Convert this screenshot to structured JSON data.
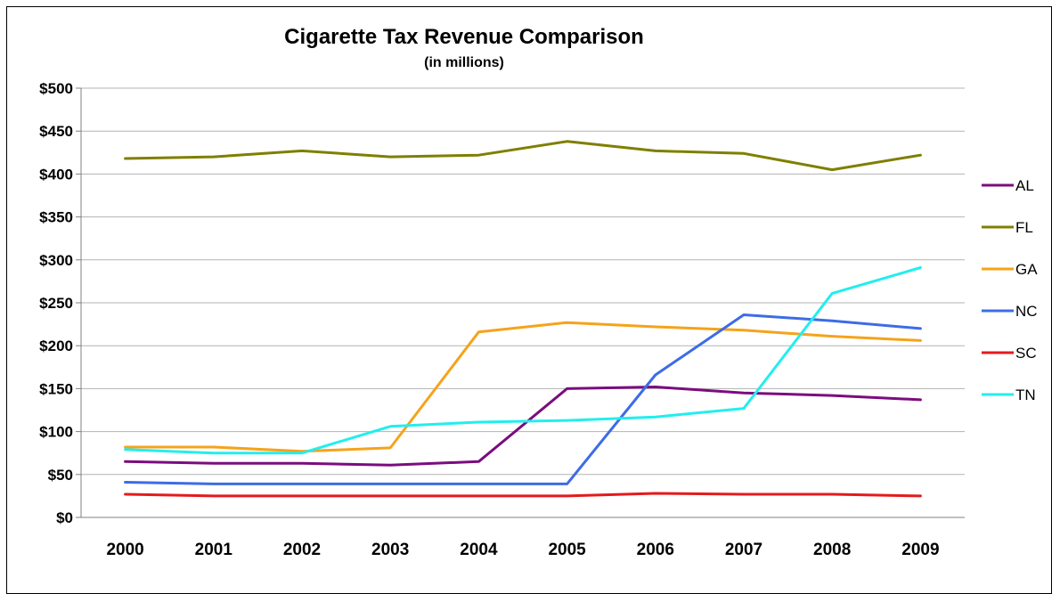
{
  "chart_data": {
    "type": "line",
    "title": "Cigarette Tax Revenue Comparison",
    "subtitle": "(in millions)",
    "xlabel": "",
    "ylabel": "",
    "x": [
      "2000",
      "2001",
      "2002",
      "2003",
      "2004",
      "2005",
      "2006",
      "2007",
      "2008",
      "2009"
    ],
    "ylim": [
      0,
      500
    ],
    "yticks": [
      {
        "value": 0,
        "label": "$0"
      },
      {
        "value": 50,
        "label": "$50"
      },
      {
        "value": 100,
        "label": "$100"
      },
      {
        "value": 150,
        "label": "$150"
      },
      {
        "value": 200,
        "label": "$200"
      },
      {
        "value": 250,
        "label": "$250"
      },
      {
        "value": 300,
        "label": "$300"
      },
      {
        "value": 350,
        "label": "$350"
      },
      {
        "value": 400,
        "label": "$400"
      },
      {
        "value": 450,
        "label": "$450"
      },
      {
        "value": 500,
        "label": "$500"
      }
    ],
    "grid": "horizontal",
    "legend_position": "right",
    "series": [
      {
        "name": "AL",
        "color": "#7B0C7E",
        "values": [
          65,
          63,
          63,
          61,
          65,
          150,
          152,
          145,
          142,
          137
        ]
      },
      {
        "name": "FL",
        "color": "#7F7F00",
        "values": [
          418,
          420,
          427,
          420,
          422,
          438,
          427,
          424,
          405,
          422
        ]
      },
      {
        "name": "GA",
        "color": "#F5A31A",
        "values": [
          82,
          82,
          77,
          81,
          216,
          227,
          222,
          218,
          211,
          206
        ]
      },
      {
        "name": "NC",
        "color": "#3C6CE6",
        "values": [
          41,
          39,
          39,
          39,
          39,
          39,
          166,
          236,
          229,
          220
        ]
      },
      {
        "name": "SC",
        "color": "#E41A1C",
        "values": [
          27,
          25,
          25,
          25,
          25,
          25,
          28,
          27,
          27,
          25
        ]
      },
      {
        "name": "TN",
        "color": "#22EEEE",
        "values": [
          79,
          75,
          75,
          106,
          111,
          113,
          117,
          127,
          261,
          291
        ]
      }
    ]
  }
}
